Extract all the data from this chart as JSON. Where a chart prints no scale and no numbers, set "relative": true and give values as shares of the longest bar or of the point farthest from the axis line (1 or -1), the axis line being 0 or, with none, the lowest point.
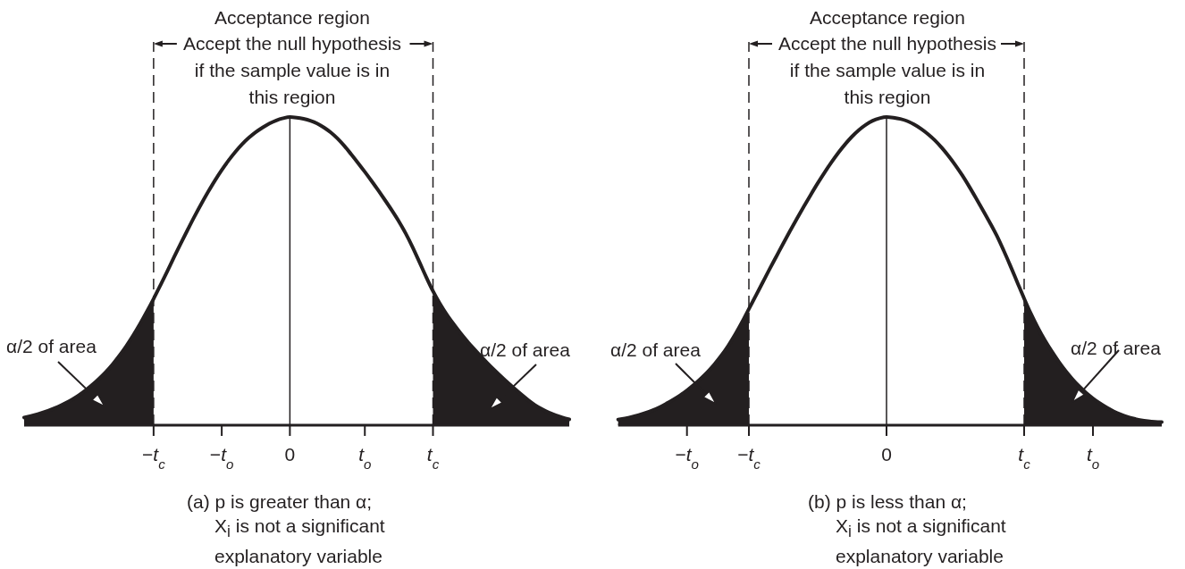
{
  "chart_data": [
    {
      "type": "line",
      "relative": true,
      "categories": [
        null,
        null,
        null,
        null,
        null,
        null,
        null,
        null,
        null,
        null,
        null,
        null,
        null,
        null,
        null,
        null,
        null,
        null,
        null,
        "−t$_{c}$",
        null,
        null,
        null,
        null,
        null,
        null,
        null,
        null,
        null,
        "−t$_{o}$",
        null,
        null,
        null,
        null,
        null,
        null,
        null,
        null,
        null,
        "0",
        null,
        null,
        null,
        null,
        null,
        null,
        null,
        null,
        null,
        null,
        "t$_{o}$",
        null,
        null,
        null,
        null,
        null,
        null,
        null,
        null,
        null,
        "t$_{c}$",
        null,
        null,
        null,
        null,
        null,
        null,
        null,
        null,
        null,
        null,
        null,
        null,
        null,
        null,
        null,
        null,
        null,
        null,
        null,
        null
      ],
      "series": [
        {
          "type": "area",
          "color": "#231f20",
          "values": [
            0.025,
            0.03,
            0.036,
            0.043,
            0.051,
            0.06,
            0.071,
            0.083,
            0.097,
            0.113,
            0.131,
            0.151,
            0.173,
            0.198,
            0.226,
            0.257,
            0.291,
            0.328,
            0.368,
            0.41,
            null,
            null,
            null,
            null,
            null,
            null,
            null,
            null,
            null,
            null,
            null,
            null,
            null,
            null,
            null,
            null,
            null,
            null,
            null,
            null,
            null,
            null,
            null,
            null,
            null,
            null,
            null,
            null,
            null,
            null,
            null,
            null,
            null,
            null,
            null,
            null,
            null,
            null,
            null,
            null,
            0.435,
            0.395,
            0.36,
            0.329,
            0.3,
            0.273,
            0.248,
            0.224,
            0.201,
            0.179,
            0.158,
            0.138,
            0.118,
            0.099,
            0.081,
            0.065,
            0.052,
            0.041,
            0.032,
            0.025,
            0.019
          ]
        },
        {
          "color": "#231f20",
          "values": [
            0.025,
            0.03,
            0.036,
            0.043,
            0.051,
            0.06,
            0.071,
            0.083,
            0.097,
            0.113,
            0.131,
            0.151,
            0.173,
            0.198,
            0.226,
            0.257,
            0.291,
            0.328,
            0.368,
            0.41,
            0.454,
            0.499,
            0.545,
            0.59,
            0.634,
            0.677,
            0.718,
            0.757,
            0.794,
            0.828,
            0.859,
            0.887,
            0.912,
            0.933,
            0.951,
            0.966,
            0.979,
            0.989,
            0.996,
            1.0,
            0.998,
            0.994,
            0.988,
            0.979,
            0.966,
            0.95,
            0.93,
            0.906,
            0.879,
            0.851,
            0.822,
            0.792,
            0.761,
            0.729,
            0.696,
            0.661,
            0.622,
            0.578,
            0.53,
            0.481,
            0.435,
            0.395,
            0.36,
            0.329,
            0.3,
            0.273,
            0.248,
            0.224,
            0.201,
            0.179,
            0.158,
            0.138,
            0.118,
            0.099,
            0.081,
            0.065,
            0.052,
            0.041,
            0.032,
            0.025,
            0.019
          ]
        }
      ],
      "ref_lines": [
        {
          "axis": "x",
          "value": "−t$_{c}$",
          "line_style": "dashed"
        },
        {
          "axis": "x",
          "value": "t$_{c}$",
          "line_style": "dashed"
        },
        {
          "axis": "x",
          "value": "0"
        }
      ],
      "annotations": [
        "Acceptance region",
        "Accept the null hypothesis\nif the sample value is in\nthis region",
        "α/2 of area",
        "α/2 of area",
        "(a) p is greater than α;\nX$_{i}$ is not a significant\nexplanatory variable"
      ]
    },
    {
      "type": "line",
      "relative": true,
      "categories": [
        null,
        null,
        null,
        null,
        null,
        null,
        null,
        null,
        null,
        null,
        "−t$_{o}$",
        null,
        null,
        null,
        null,
        null,
        null,
        null,
        null,
        "−t$_{c}$",
        null,
        null,
        null,
        null,
        null,
        null,
        null,
        null,
        null,
        null,
        null,
        null,
        null,
        null,
        null,
        null,
        null,
        null,
        null,
        "0",
        null,
        null,
        null,
        null,
        null,
        null,
        null,
        null,
        null,
        null,
        null,
        null,
        null,
        null,
        null,
        null,
        null,
        null,
        null,
        "t$_{c}$",
        null,
        null,
        null,
        null,
        null,
        null,
        null,
        null,
        null,
        "t$_{o}$",
        null,
        null,
        null,
        null,
        null,
        null,
        null,
        null,
        null,
        null
      ],
      "series": [
        {
          "type": "area",
          "color": "#231f20",
          "values": [
            0.018,
            0.022,
            0.027,
            0.033,
            0.04,
            0.048,
            0.058,
            0.07,
            0.083,
            0.097,
            0.113,
            0.131,
            0.151,
            0.173,
            0.198,
            0.226,
            0.258,
            0.294,
            0.334,
            0.377,
            null,
            null,
            null,
            null,
            null,
            null,
            null,
            null,
            null,
            null,
            null,
            null,
            null,
            null,
            null,
            null,
            null,
            null,
            null,
            null,
            null,
            null,
            null,
            null,
            null,
            null,
            null,
            null,
            null,
            null,
            null,
            null,
            null,
            null,
            null,
            null,
            null,
            null,
            null,
            0.411,
            0.361,
            0.316,
            0.276,
            0.24,
            0.207,
            0.177,
            0.15,
            0.126,
            0.105,
            0.087,
            0.071,
            0.057,
            0.045,
            0.035,
            0.027,
            0.021,
            0.016,
            0.013,
            0.011,
            0.01
          ]
        },
        {
          "color": "#231f20",
          "values": [
            0.018,
            0.022,
            0.027,
            0.033,
            0.04,
            0.048,
            0.058,
            0.07,
            0.083,
            0.097,
            0.113,
            0.131,
            0.151,
            0.173,
            0.198,
            0.226,
            0.258,
            0.294,
            0.334,
            0.377,
            0.42,
            0.463,
            0.506,
            0.548,
            0.59,
            0.631,
            0.671,
            0.71,
            0.748,
            0.785,
            0.82,
            0.853,
            0.884,
            0.912,
            0.937,
            0.958,
            0.975,
            0.988,
            0.996,
            1.0,
            0.998,
            0.994,
            0.987,
            0.976,
            0.962,
            0.945,
            0.925,
            0.901,
            0.874,
            0.844,
            0.811,
            0.775,
            0.737,
            0.698,
            0.658,
            0.616,
            0.568,
            0.517,
            0.464,
            0.411,
            0.361,
            0.316,
            0.276,
            0.24,
            0.207,
            0.177,
            0.15,
            0.126,
            0.105,
            0.087,
            0.071,
            0.057,
            0.045,
            0.035,
            0.027,
            0.021,
            0.016,
            0.013,
            0.011,
            0.01
          ]
        }
      ],
      "ref_lines": [
        {
          "axis": "x",
          "value": "−t$_{c}$",
          "line_style": "dashed"
        },
        {
          "axis": "x",
          "value": "t$_{c}$",
          "line_style": "dashed"
        },
        {
          "axis": "x",
          "value": "0"
        }
      ],
      "annotations": [
        "Acceptance region",
        "Accept the null hypothesis\nif the sample value is in\nthis region",
        "α/2 of area",
        "α/2 of area",
        "(b) p is less than α;\nX$_{i}$ is not a significant\nexplanatory variable"
      ]
    }
  ]
}
